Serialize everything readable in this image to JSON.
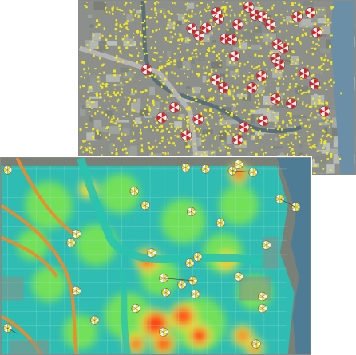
{
  "panels": {
    "top": {
      "kind": "aerial-point-cluster-map",
      "colors": {
        "points": "#f2ea1c",
        "cluster_symbol": "#d4202a",
        "water": "#6a8fa6",
        "ground": "#8c8f8a"
      }
    },
    "bottom": {
      "kind": "aerial-heatmap",
      "colors": {
        "heat_low": "#1ec9c0",
        "heat_mid": "#7fe64a",
        "heat_high": "#ff2a1a",
        "highways": "#f08a2a",
        "symbols": "#f4e51e"
      }
    }
  }
}
